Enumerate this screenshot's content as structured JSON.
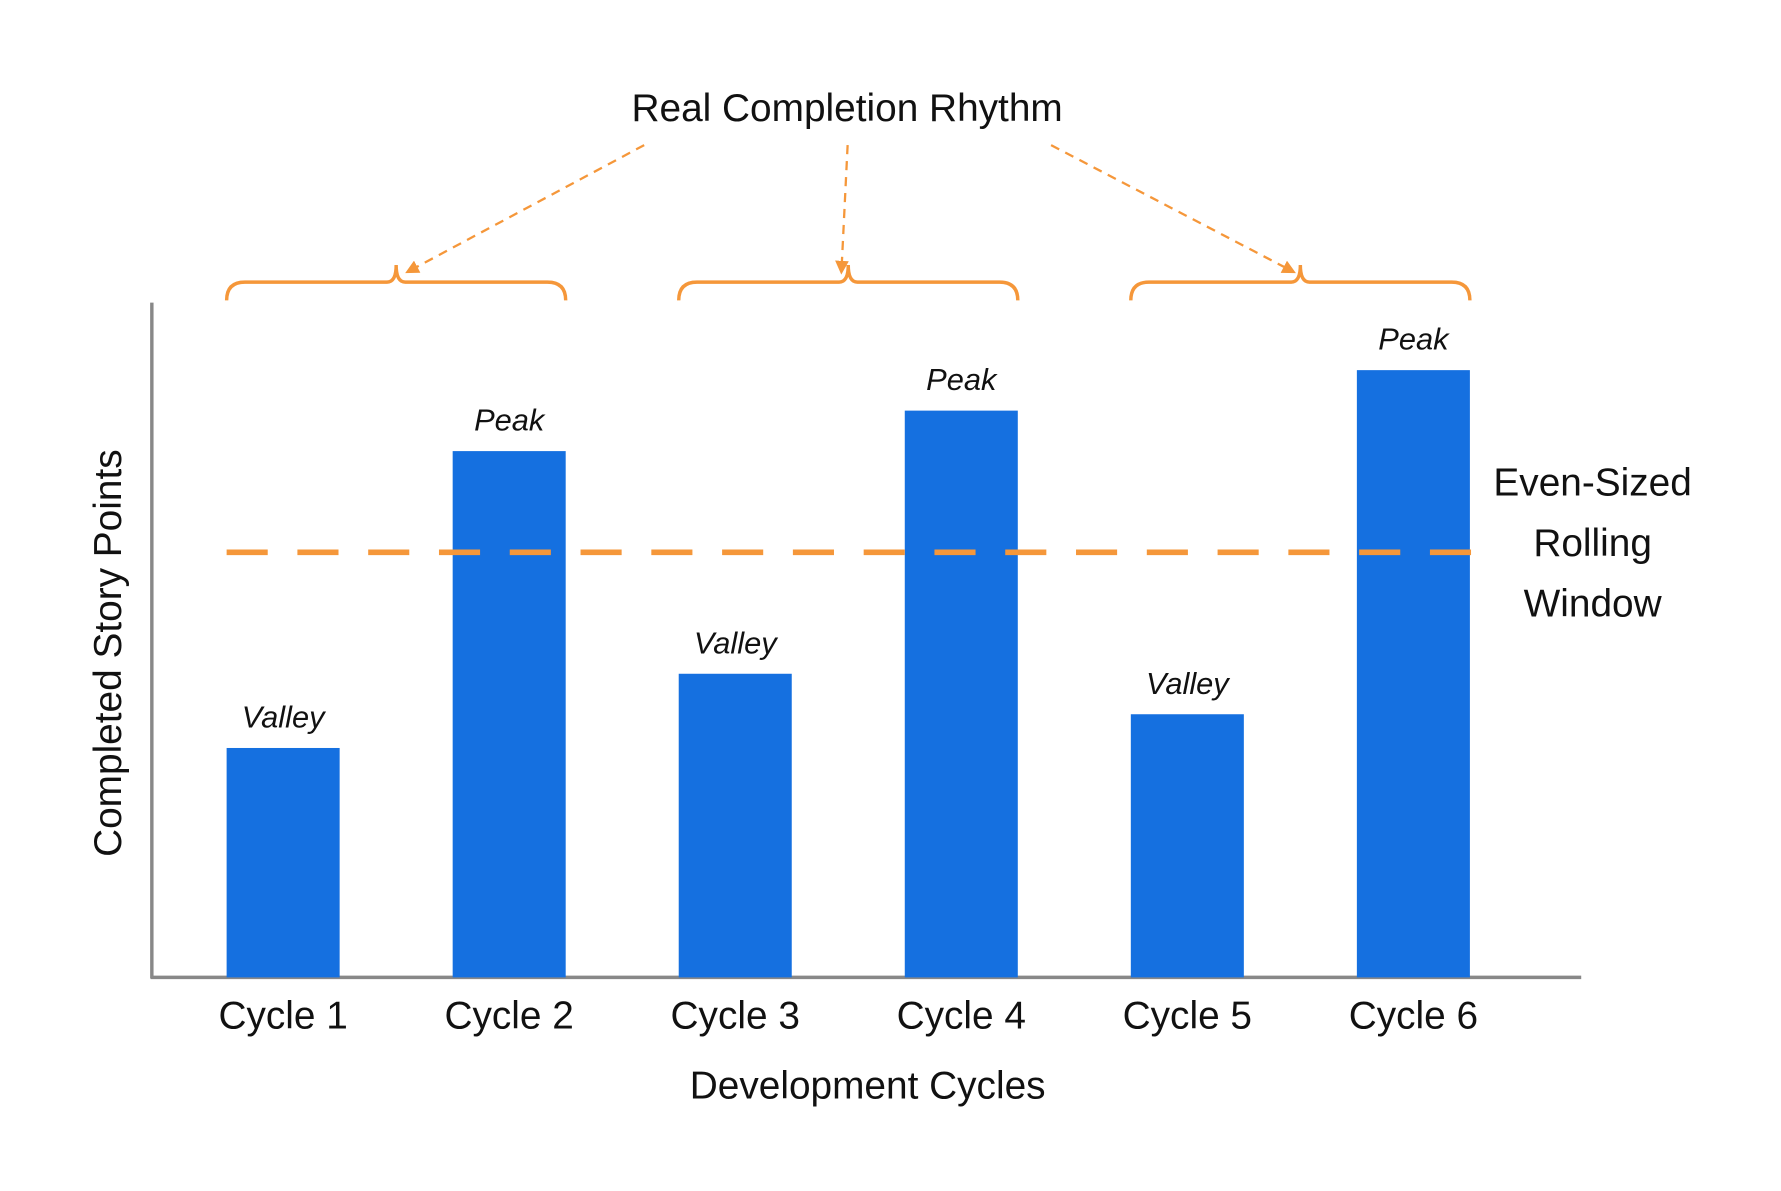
{
  "chart_data": {
    "type": "bar",
    "title": "Real Completion Rhythm",
    "xlabel": "Development Cycles",
    "ylabel": "Completed Story Points",
    "categories": [
      "Cycle 1",
      "Cycle 2",
      "Cycle 3",
      "Cycle 4",
      "Cycle 5",
      "Cycle 6"
    ],
    "values": [
      34,
      78,
      45,
      84,
      39,
      90
    ],
    "bar_labels": [
      "Valley",
      "Peak",
      "Valley",
      "Peak",
      "Valley",
      "Peak"
    ],
    "color": "#1570e0",
    "ylim": [
      0,
      100
    ],
    "reference_line": {
      "value": 63,
      "label": [
        "Even-Sized",
        "Rolling",
        "Window"
      ],
      "color": "#f5973a"
    }
  }
}
